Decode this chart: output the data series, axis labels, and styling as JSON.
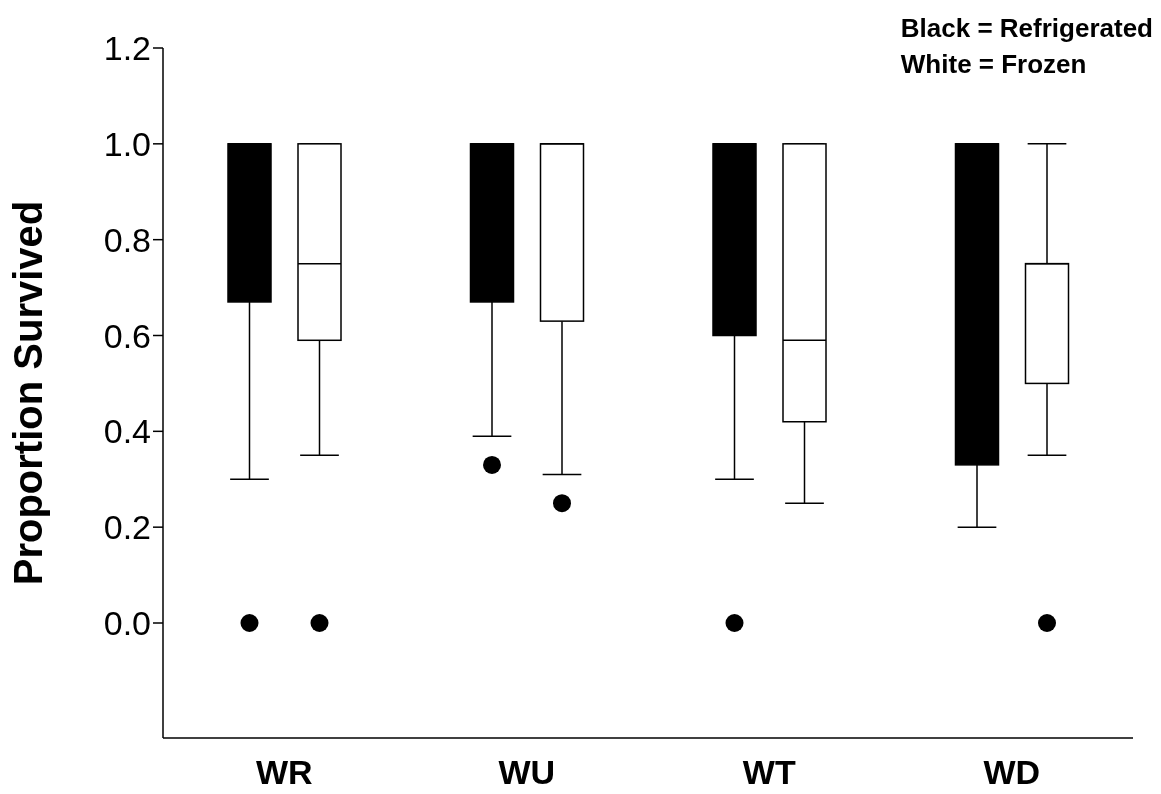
{
  "chart_data": {
    "type": "box",
    "ylabel": "Proportion Survived",
    "categories": [
      "WR",
      "WU",
      "WT",
      "WD"
    ],
    "ylim": [
      -0.24,
      1.2
    ],
    "yticks": [
      {
        "value": 0,
        "label": "0.0"
      },
      {
        "value": 0.2,
        "label": "0.2"
      },
      {
        "value": 0.4,
        "label": "0.4"
      },
      {
        "value": 0.6,
        "label": "0.6"
      },
      {
        "value": 0.8,
        "label": "0.8"
      },
      {
        "value": 1,
        "label": "1.0"
      },
      {
        "value": 1.2,
        "label": "1.2"
      }
    ],
    "annotations": [
      "Black = Refrigerated",
      "White = Frozen"
    ],
    "series": [
      {
        "color": "#000000",
        "boxes": [
          {
            "low": 0.3,
            "q1": 0.67,
            "median": 1,
            "q3": 1,
            "high": 1,
            "outliers": [
              0
            ]
          },
          {
            "low": 0.39,
            "q1": 0.67,
            "median": 1,
            "q3": 1,
            "high": 1,
            "outliers": [
              0.33
            ]
          },
          {
            "low": 0.3,
            "q1": 0.6,
            "median": 1,
            "q3": 1,
            "high": 1,
            "outliers": [
              0
            ]
          },
          {
            "low": 0.2,
            "q1": 0.33,
            "median": 1,
            "q3": 1,
            "high": 1
          }
        ]
      },
      {
        "color": "#ffffff",
        "boxes": [
          {
            "low": 0.35,
            "q1": 0.59,
            "median": 0.75,
            "q3": 1,
            "high": 1,
            "outliers": [
              0
            ]
          },
          {
            "low": 0.31,
            "q1": 0.63,
            "median": 1,
            "q3": 1,
            "high": 1,
            "outliers": [
              0.25
            ]
          },
          {
            "low": 0.25,
            "q1": 0.42,
            "median": 0.59,
            "q3": 1,
            "high": 1
          },
          {
            "low": 0.35,
            "q1": 0.5,
            "median": 0.75,
            "q3": 0.75,
            "high": 1,
            "outliers": [
              0
            ]
          }
        ]
      }
    ]
  }
}
